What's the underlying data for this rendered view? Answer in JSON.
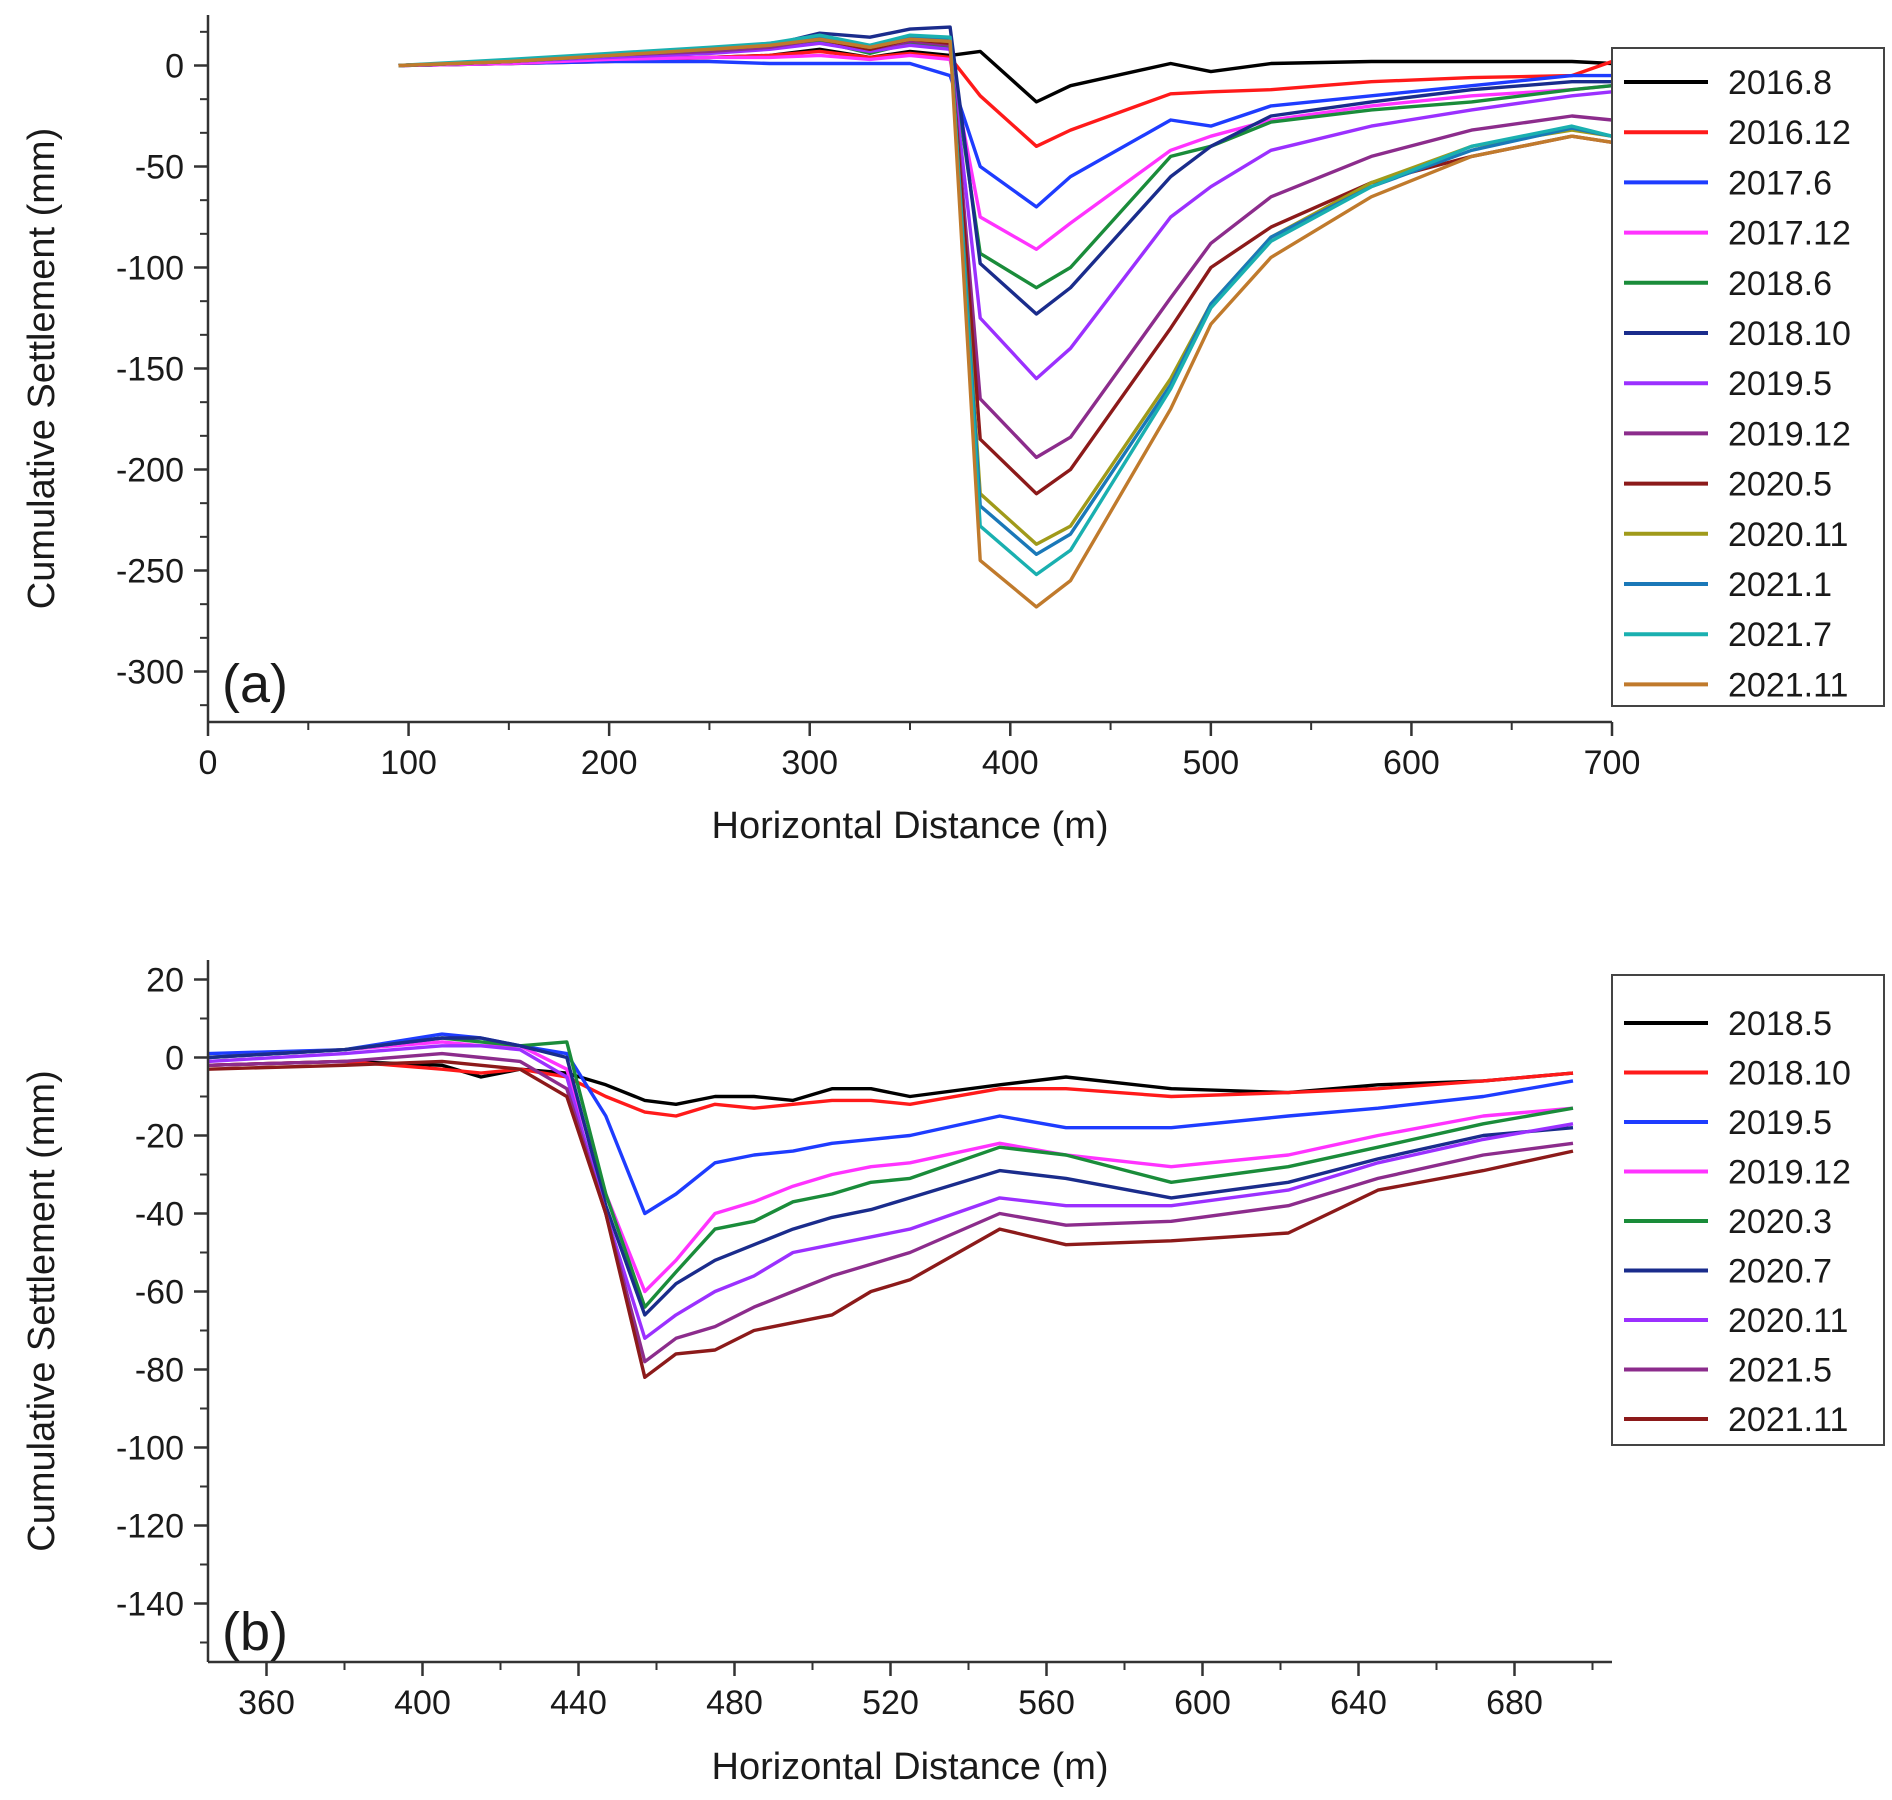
{
  "chart_data": [
    {
      "type": "line",
      "panel_label": "(a)",
      "xlabel": "Horizontal Distance (m)",
      "ylabel": "Cumulative Settlement (mm)",
      "xlim": [
        0,
        700
      ],
      "ylim": [
        -325,
        25
      ],
      "xticks": [
        0,
        100,
        200,
        300,
        400,
        500,
        600,
        700
      ],
      "yticks": [
        0,
        -50,
        -100,
        -150,
        -200,
        -250,
        -300
      ],
      "legend_position": "right",
      "x": [
        95,
        150,
        200,
        250,
        280,
        305,
        330,
        350,
        370,
        385,
        413,
        430,
        480,
        500,
        530,
        580,
        630,
        680,
        700
      ],
      "series": [
        {
          "name": "2016.8",
          "color": "#000000",
          "values": [
            0,
            1,
            3,
            4,
            5,
            8,
            4,
            7,
            5,
            7,
            -18,
            -10,
            1,
            -3,
            1,
            2,
            2,
            2,
            1
          ]
        },
        {
          "name": "2016.12",
          "color": "#ff1a1a",
          "values": [
            0,
            1,
            2,
            4,
            5,
            7,
            4,
            6,
            4,
            -15,
            -40,
            -32,
            -14,
            -13,
            -12,
            -8,
            -6,
            -5,
            2
          ]
        },
        {
          "name": "2017.6",
          "color": "#1e3cff",
          "values": [
            0,
            1,
            2,
            2,
            1,
            1,
            1,
            1,
            -5,
            -50,
            -70,
            -55,
            -27,
            -30,
            -20,
            -15,
            -10,
            -5,
            -5
          ]
        },
        {
          "name": "2017.12",
          "color": "#ff33ff",
          "values": [
            0,
            1,
            3,
            4,
            4,
            5,
            3,
            5,
            3,
            -75,
            -91,
            -78,
            -42,
            -35,
            -27,
            -20,
            -15,
            -12,
            -10
          ]
        },
        {
          "name": "2018.6",
          "color": "#1a8c3a",
          "values": [
            0,
            2,
            5,
            7,
            9,
            12,
            6,
            11,
            9,
            -93,
            -110,
            -100,
            -45,
            -40,
            -28,
            -22,
            -18,
            -12,
            -10
          ]
        },
        {
          "name": "2018.10",
          "color": "#1a2c8c",
          "values": [
            0,
            2,
            5,
            8,
            10,
            16,
            14,
            18,
            19,
            -98,
            -123,
            -110,
            -55,
            -40,
            -25,
            -18,
            -12,
            -8,
            -8
          ]
        },
        {
          "name": "2019.5",
          "color": "#9b30ff",
          "values": [
            0,
            2,
            4,
            6,
            8,
            11,
            7,
            10,
            8,
            -125,
            -155,
            -140,
            -75,
            -60,
            -42,
            -30,
            -22,
            -15,
            -13
          ]
        },
        {
          "name": "2019.12",
          "color": "#8c2c8c",
          "values": [
            0,
            2,
            5,
            7,
            9,
            13,
            8,
            12,
            10,
            -165,
            -194,
            -184,
            -115,
            -88,
            -65,
            -45,
            -32,
            -25,
            -27
          ]
        },
        {
          "name": "2020.5",
          "color": "#8c1a1a",
          "values": [
            0,
            2,
            5,
            8,
            10,
            13,
            8,
            13,
            11,
            -185,
            -212,
            -200,
            -130,
            -100,
            -80,
            -58,
            -45,
            -35,
            -38
          ]
        },
        {
          "name": "2020.11",
          "color": "#a09a1a",
          "values": [
            0,
            2,
            5,
            8,
            10,
            13,
            9,
            13,
            12,
            -212,
            -237,
            -228,
            -155,
            -118,
            -85,
            -58,
            -40,
            -32,
            -35
          ]
        },
        {
          "name": "2021.1",
          "color": "#1a78b8",
          "values": [
            0,
            2,
            5,
            8,
            11,
            14,
            9,
            14,
            13,
            -218,
            -242,
            -232,
            -158,
            -118,
            -85,
            -60,
            -42,
            -31,
            -35
          ]
        },
        {
          "name": "2021.7",
          "color": "#1ab0b0",
          "values": [
            0,
            3,
            6,
            9,
            11,
            15,
            10,
            15,
            14,
            -228,
            -252,
            -240,
            -160,
            -120,
            -87,
            -60,
            -40,
            -30,
            -35
          ]
        },
        {
          "name": "2021.11",
          "color": "#c07a2c",
          "values": [
            0,
            2,
            5,
            8,
            10,
            13,
            9,
            13,
            12,
            -245,
            -268,
            -255,
            -170,
            -128,
            -95,
            -65,
            -45,
            -35,
            -38
          ]
        }
      ]
    },
    {
      "type": "line",
      "panel_label": "(b)",
      "xlabel": "Horizontal Distance (m)",
      "ylabel": "Cumulative Settlement (mm)",
      "xlim": [
        345,
        705
      ],
      "ylim": [
        -155,
        25
      ],
      "xticks": [
        360,
        400,
        440,
        480,
        520,
        560,
        600,
        640,
        680
      ],
      "yticks": [
        20,
        0,
        -20,
        -40,
        -60,
        -80,
        -100,
        -120,
        -140
      ],
      "legend_position": "right",
      "x": [
        345,
        380,
        405,
        415,
        425,
        437,
        447,
        457,
        465,
        475,
        485,
        495,
        505,
        515,
        525,
        548,
        565,
        592,
        622,
        645,
        672,
        695
      ],
      "series": [
        {
          "name": "2018.5",
          "color": "#000000",
          "values": [
            -2,
            -1,
            -2,
            -5,
            -3,
            -4,
            -7,
            -11,
            -12,
            -10,
            -10,
            -11,
            -8,
            -8,
            -10,
            -7,
            -5,
            -8,
            -9,
            -7,
            -6,
            -4
          ]
        },
        {
          "name": "2018.10",
          "color": "#ff1a1a",
          "values": [
            -2,
            -1,
            -3,
            -4,
            -3,
            -5,
            -10,
            -14,
            -15,
            -12,
            -13,
            -12,
            -11,
            -11,
            -12,
            -8,
            -8,
            -10,
            -9,
            -8,
            -6,
            -4
          ]
        },
        {
          "name": "2019.5",
          "color": "#1e3cff",
          "values": [
            1,
            2,
            6,
            5,
            3,
            1,
            -15,
            -40,
            -35,
            -27,
            -25,
            -24,
            -22,
            -21,
            -20,
            -15,
            -18,
            -18,
            -15,
            -13,
            -10,
            -6
          ]
        },
        {
          "name": "2019.12",
          "color": "#ff33ff",
          "values": [
            0,
            2,
            4,
            3,
            3,
            -3,
            -35,
            -60,
            -52,
            -40,
            -37,
            -33,
            -30,
            -28,
            -27,
            -22,
            -25,
            -28,
            -25,
            -20,
            -15,
            -13
          ]
        },
        {
          "name": "2020.3",
          "color": "#1a8c3a",
          "values": [
            0,
            2,
            5,
            4,
            3,
            4,
            -35,
            -64,
            -55,
            -44,
            -42,
            -37,
            -35,
            -32,
            -31,
            -23,
            -25,
            -32,
            -28,
            -23,
            -17,
            -13
          ]
        },
        {
          "name": "2020.7",
          "color": "#1a2c8c",
          "values": [
            0,
            2,
            5,
            5,
            3,
            0,
            -38,
            -66,
            -58,
            -52,
            -48,
            -44,
            -41,
            -39,
            -36,
            -29,
            -31,
            -36,
            -32,
            -26,
            -20,
            -18
          ]
        },
        {
          "name": "2020.11",
          "color": "#9b30ff",
          "values": [
            -1,
            1,
            3,
            3,
            2,
            -5,
            -40,
            -72,
            -66,
            -60,
            -56,
            -50,
            -48,
            -46,
            -44,
            -36,
            -38,
            -38,
            -34,
            -27,
            -21,
            -17
          ]
        },
        {
          "name": "2021.5",
          "color": "#8c2c8c",
          "values": [
            -2,
            -1,
            1,
            0,
            -1,
            -8,
            -40,
            -78,
            -72,
            -69,
            -64,
            -60,
            -56,
            -53,
            -50,
            -40,
            -43,
            -42,
            -38,
            -31,
            -25,
            -22
          ]
        },
        {
          "name": "2021.11",
          "color": "#8c1a1a",
          "values": [
            -3,
            -2,
            -1,
            -2,
            -3,
            -10,
            -40,
            -82,
            -76,
            -75,
            -70,
            -68,
            -66,
            -60,
            -57,
            -44,
            -48,
            -47,
            -45,
            -34,
            -29,
            -24
          ]
        }
      ]
    }
  ]
}
